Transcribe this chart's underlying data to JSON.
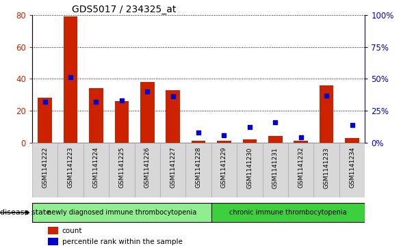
{
  "title": "GDS5017 / 234325_at",
  "samples": [
    "GSM1141222",
    "GSM1141223",
    "GSM1141224",
    "GSM1141225",
    "GSM1141226",
    "GSM1141227",
    "GSM1141228",
    "GSM1141229",
    "GSM1141230",
    "GSM1141231",
    "GSM1141232",
    "GSM1141233",
    "GSM1141234"
  ],
  "counts": [
    28,
    79,
    34,
    26,
    38,
    33,
    1,
    1,
    2,
    4,
    1,
    36,
    3
  ],
  "percentiles": [
    32,
    51,
    32,
    33,
    40,
    36,
    8,
    6,
    12,
    16,
    4,
    37,
    14
  ],
  "left_ylim": [
    0,
    80
  ],
  "right_ylim": [
    0,
    100
  ],
  "left_yticks": [
    0,
    20,
    40,
    60,
    80
  ],
  "right_yticks": [
    0,
    25,
    50,
    75,
    100
  ],
  "right_yticklabels": [
    "0%",
    "25%",
    "50%",
    "75%",
    "100%"
  ],
  "bar_color": "#cc2200",
  "dot_color": "#0000cc",
  "grid_color": "#000000",
  "bg_color": "#d8d8d8",
  "plot_bg": "#ffffff",
  "group1_label": "newly diagnosed immune thrombocytopenia",
  "group2_label": "chronic immune thrombocytopenia",
  "group1_color": "#90ee90",
  "group2_color": "#3ecf3e",
  "group1_count": 7,
  "group2_count": 6,
  "disease_state_label": "disease state",
  "legend_count_label": "count",
  "legend_percentile_label": "percentile rank within the sample",
  "bar_width": 0.55,
  "fig_width": 5.86,
  "fig_height": 3.63
}
